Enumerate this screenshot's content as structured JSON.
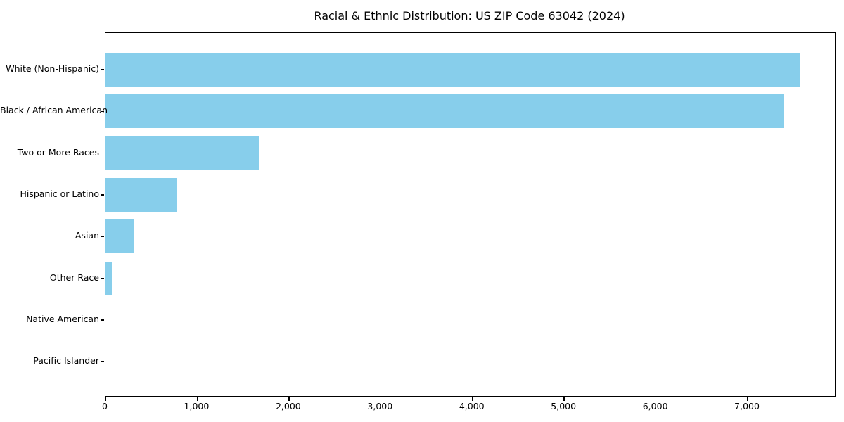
{
  "chart_data": {
    "type": "bar",
    "orientation": "horizontal",
    "title": "Racial & Ethnic Distribution: US ZIP Code 63042 (2024)",
    "categories": [
      "White (Non-Hispanic)",
      "Black / African American",
      "Two or More Races",
      "Hispanic or Latino",
      "Asian",
      "Other Race",
      "Native American",
      "Pacific Islander"
    ],
    "values": [
      7570,
      7400,
      1670,
      775,
      315,
      70,
      0,
      0
    ],
    "bar_color": "#87CEEB",
    "background_color": "#ffffff",
    "text_color": "#000000",
    "xlabel": "",
    "ylabel": "",
    "xlim": [
      0,
      7950
    ],
    "x_ticks": [
      0,
      1000,
      2000,
      3000,
      4000,
      5000,
      6000,
      7000
    ],
    "x_tick_labels": [
      "0",
      "1,000",
      "2,000",
      "3,000",
      "4,000",
      "5,000",
      "6,000",
      "7,000"
    ],
    "grid": false,
    "legend": null
  }
}
